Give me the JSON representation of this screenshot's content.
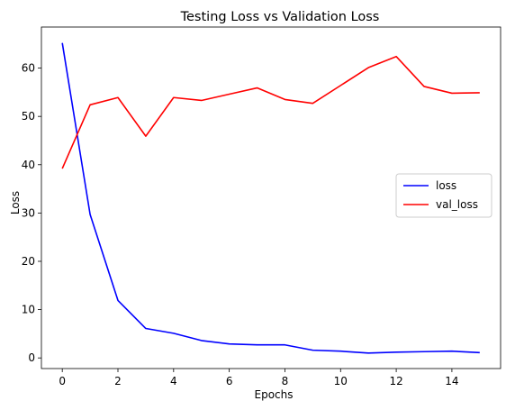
{
  "chart_data": {
    "type": "line",
    "title": "Testing Loss vs Validation Loss",
    "xlabel": "Epochs",
    "ylabel": "Loss",
    "xlim": [
      -0.75,
      15.75
    ],
    "ylim": [
      -2.2,
      68.5
    ],
    "xticks": [
      0,
      2,
      4,
      6,
      8,
      10,
      12,
      14
    ],
    "yticks": [
      0,
      10,
      20,
      30,
      40,
      50,
      60
    ],
    "grid": false,
    "legend_position": "center-right",
    "x": [
      0,
      1,
      2,
      3,
      4,
      5,
      6,
      7,
      8,
      9,
      10,
      11,
      12,
      13,
      14,
      15
    ],
    "series": [
      {
        "name": "loss",
        "color": "#0000ff",
        "values": [
          65.2,
          29.7,
          11.9,
          6.1,
          5.1,
          3.6,
          2.9,
          2.7,
          2.7,
          1.6,
          1.4,
          1.0,
          1.2,
          1.3,
          1.4,
          1.1
        ]
      },
      {
        "name": "val_loss",
        "color": "#ff0000",
        "values": [
          39.2,
          52.4,
          53.9,
          45.9,
          53.9,
          53.3,
          54.6,
          55.9,
          53.5,
          52.7,
          56.4,
          60.1,
          62.4,
          56.2,
          54.8,
          54.9
        ]
      }
    ]
  }
}
